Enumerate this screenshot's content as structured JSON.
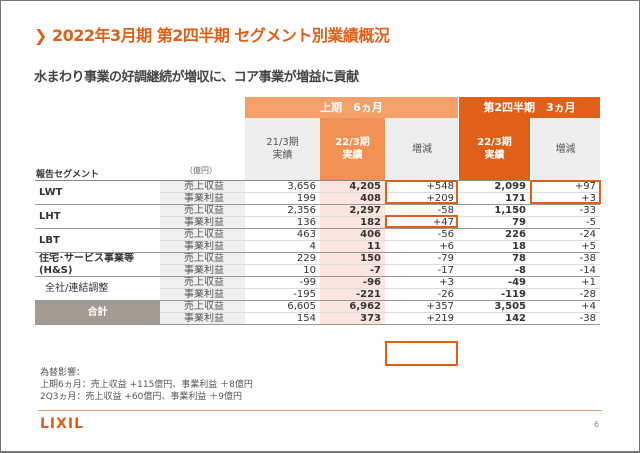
{
  "title": "❯ 2022年3月期 第2四半期 セグメント別業績概況",
  "subtitle": "水まわり事業の好調継続が増収に、コア事業が増益に貢献",
  "header": {
    "h1_band": "上期　6ヵ月",
    "q2_band": "第2四半期　3ヵ月",
    "col_fy21": "21/3期\n実績",
    "col_fy22": "22/3期\n実績",
    "col_diff": "増減",
    "col_q2_fy22": "22/3期\n実績",
    "col_q2_diff": "増減",
    "segment_label": "報告セグメント",
    "unit": "（億円）"
  },
  "colors": {
    "accent": "#e0601a",
    "light_accent": "#f4a06a",
    "total_bg": "#a39a91"
  },
  "rows": [
    {
      "segment": "LWT",
      "item": "売上収益",
      "fy21": "3,656",
      "fy22": "4,205",
      "diff": "+548",
      "q2": "2,099",
      "q2diff": "+97"
    },
    {
      "item": "事業利益",
      "fy21": "199",
      "fy22": "408",
      "diff": "+209",
      "q2": "171",
      "q2diff": "+3"
    },
    {
      "segment": "LHT",
      "item": "売上収益",
      "fy21": "2,356",
      "fy22": "2,297",
      "diff": "-58",
      "q2": "1,150",
      "q2diff": "-33"
    },
    {
      "item": "事業利益",
      "fy21": "136",
      "fy22": "182",
      "diff": "+47",
      "q2": "79",
      "q2diff": "-5"
    },
    {
      "segment": "LBT",
      "item": "売上収益",
      "fy21": "463",
      "fy22": "406",
      "diff": "-56",
      "q2": "226",
      "q2diff": "-24"
    },
    {
      "item": "事業利益",
      "fy21": "4",
      "fy22": "11",
      "diff": "+6",
      "q2": "18",
      "q2diff": "+5"
    },
    {
      "segment": "住宅･サービス事業等",
      "item": "売上収益",
      "fy21": "229",
      "fy22": "150",
      "diff": "-79",
      "q2": "78",
      "q2diff": "-38"
    },
    {
      "segment": "(H&S)",
      "item": "事業利益",
      "fy21": "10",
      "fy22": "-7",
      "diff": "-17",
      "q2": "-8",
      "q2diff": "-14"
    },
    {
      "segment": "全社/連結調整",
      "item": "売上収益",
      "fy21": "-99",
      "fy22": "-96",
      "diff": "+3",
      "q2": "-49",
      "q2diff": "+1"
    },
    {
      "item": "事業利益",
      "fy21": "-195",
      "fy22": "-221",
      "diff": "-26",
      "q2": "-119",
      "q2diff": "-28"
    },
    {
      "segment": "合計",
      "item": "売上収益",
      "fy21": "6,605",
      "fy22": "6,962",
      "diff": "+357",
      "q2": "3,505",
      "q2diff": "+4"
    },
    {
      "item": "事業利益",
      "fy21": "154",
      "fy22": "373",
      "diff": "+219",
      "q2": "142",
      "q2diff": "-38"
    }
  ],
  "notes": [
    "為替影響：",
    "上期6ヵ月：売上収益 +115億円、事業利益 ＋8億円",
    "2Q3ヵ月：売上収益 +60億円、事業利益 ＋9億円"
  ],
  "logo": "LIXIL",
  "page_number": "6"
}
